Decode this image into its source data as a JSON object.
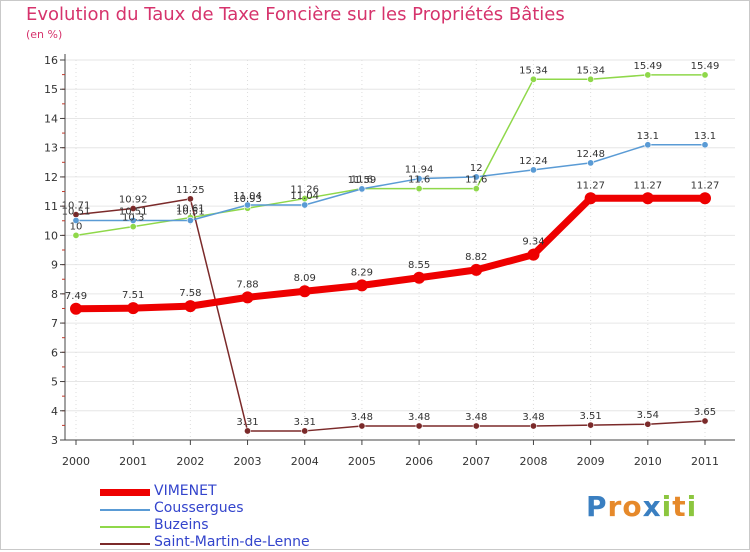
{
  "title": "Evolution du Taux de Taxe Foncière sur les Propriétés Bâties",
  "unit": "(en %)",
  "logo_text": "Proxiti",
  "chart_data": {
    "type": "line",
    "title": "Evolution du Taux de Taxe Foncière sur les Propriétés Bâties",
    "ylabel": "(en %)",
    "xlabel": "",
    "ylim": [
      3,
      16
    ],
    "yticks": [
      3,
      4,
      5,
      6,
      7,
      8,
      9,
      10,
      11,
      12,
      13,
      14,
      15,
      16
    ],
    "categories": [
      "2000",
      "2001",
      "2002",
      "2003",
      "2004",
      "2005",
      "2006",
      "2007",
      "2008",
      "2009",
      "2010",
      "2011"
    ],
    "series": [
      {
        "name": "VIMENET",
        "color": "#ee0000",
        "values": [
          7.49,
          7.51,
          7.58,
          7.88,
          8.09,
          8.29,
          8.55,
          8.82,
          9.34,
          11.27,
          11.27,
          11.27
        ],
        "labels": [
          "7.49",
          "7.51",
          "7.58",
          "7.88",
          "8.09",
          "8.29",
          "8.55",
          "8.82",
          "9.34",
          "11.27",
          "11.27",
          "11.27"
        ]
      },
      {
        "name": "Coussergues",
        "color": "#5a9bd5",
        "values": [
          10.51,
          10.51,
          10.51,
          11.04,
          11.04,
          11.59,
          11.94,
          12.0,
          12.24,
          12.48,
          13.1,
          13.1
        ],
        "labels": [
          "10.51",
          "10.51",
          "10.51",
          "11.04",
          "11.04",
          "11.59",
          "11.94",
          "12",
          "12.24",
          "12.48",
          "13.1",
          "13.1"
        ]
      },
      {
        "name": "Buzeins",
        "color": "#8fd84a",
        "values": [
          10.0,
          10.3,
          10.61,
          10.93,
          11.26,
          11.6,
          11.6,
          11.6,
          15.34,
          15.34,
          15.49,
          15.49
        ],
        "labels": [
          "10",
          "10.3",
          "10.61",
          "10.93",
          "11.26",
          "11.6",
          "11.6",
          "11.6",
          "15.34",
          "15.34",
          "15.49",
          "15.49"
        ]
      },
      {
        "name": "Saint-Martin-de-Lenne",
        "color": "#7b2a2a",
        "values": [
          10.71,
          10.92,
          11.25,
          3.31,
          3.31,
          3.48,
          3.48,
          3.48,
          3.48,
          3.51,
          3.54,
          3.65
        ],
        "labels": [
          "10.71",
          "10.92",
          "11.25",
          "3.31",
          "3.31",
          "3.48",
          "3.48",
          "3.48",
          "3.48",
          "3.51",
          "3.54",
          "3.65"
        ]
      }
    ]
  }
}
